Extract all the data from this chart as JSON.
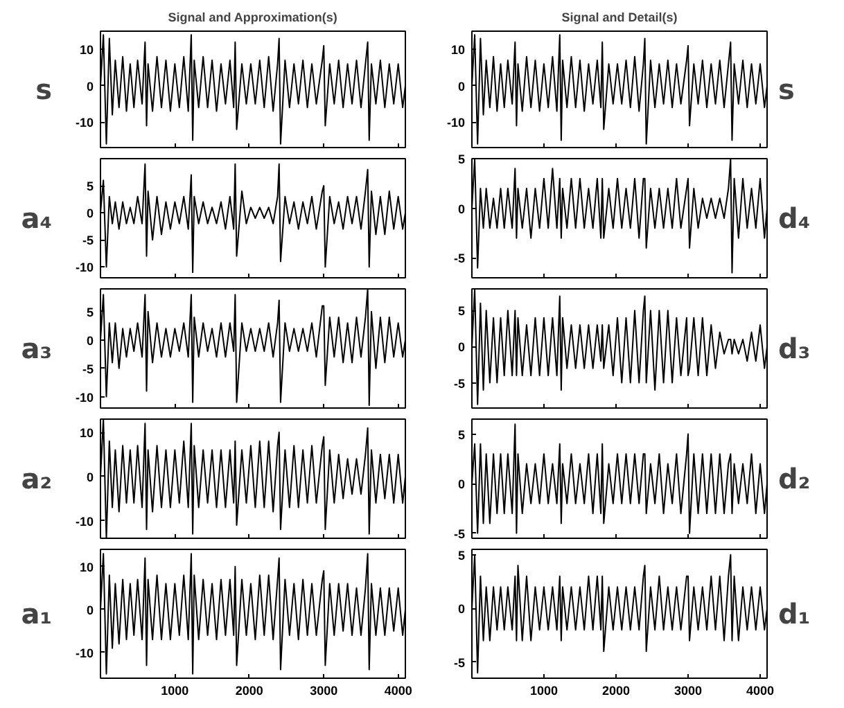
{
  "chart_data": [
    {
      "type": "line",
      "title": "Signal and Approximation(s)",
      "ylabel": "s",
      "xlim": [
        1,
        4096
      ],
      "ylim": [
        -17,
        15
      ],
      "xticks": [
        1000,
        2000,
        3000,
        4000
      ],
      "yticks": [
        -10,
        0,
        10
      ],
      "tick_labels": "y",
      "color": "#000000",
      "x": [
        1,
        40,
        80,
        120,
        160,
        200,
        250,
        300,
        350,
        400,
        450,
        500,
        560,
        600,
        620,
        640,
        700,
        760,
        820,
        880,
        940,
        1000,
        1060,
        1120,
        1180,
        1220,
        1240,
        1260,
        1320,
        1380,
        1440,
        1500,
        1560,
        1620,
        1680,
        1740,
        1790,
        1810,
        1830,
        1900,
        1960,
        2020,
        2080,
        2140,
        2200,
        2260,
        2320,
        2380,
        2400,
        2420,
        2480,
        2540,
        2600,
        2660,
        2720,
        2780,
        2840,
        2900,
        2980,
        3000,
        3020,
        3080,
        3140,
        3200,
        3260,
        3320,
        3380,
        3440,
        3500,
        3560,
        3590,
        3610,
        3640,
        3700,
        3760,
        3820,
        3880,
        3940,
        4000,
        4060,
        4096
      ],
      "values": [
        0,
        14,
        -16,
        13,
        -8,
        7,
        -6,
        8,
        -7,
        6,
        -6,
        7,
        -5,
        12,
        -11,
        6,
        -7,
        8,
        -6,
        7,
        -7,
        6,
        -6,
        8,
        -7,
        14,
        -15,
        7,
        -6,
        8,
        -6,
        7,
        -7,
        6,
        -5,
        7,
        -6,
        12,
        -12,
        6,
        -5,
        6,
        -5,
        7,
        -6,
        8,
        -7,
        6,
        13,
        -16,
        7,
        -6,
        6,
        -5,
        7,
        -6,
        6,
        -5,
        7,
        11,
        -11,
        6,
        -5,
        7,
        -6,
        6,
        -5,
        7,
        -6,
        6,
        12,
        -15,
        6,
        -5,
        7,
        -6,
        6,
        -5,
        6,
        -6,
        0
      ]
    },
    {
      "type": "line",
      "title": "Signal and Detail(s)",
      "ylabel": "s",
      "xlim": [
        1,
        4096
      ],
      "ylim": [
        -17,
        15
      ],
      "xticks": [
        1000,
        2000,
        3000,
        4000
      ],
      "yticks": [
        -10,
        0,
        10
      ],
      "tick_labels": "y",
      "color": "#000000",
      "x": [
        1,
        40,
        80,
        120,
        160,
        200,
        250,
        300,
        350,
        400,
        450,
        500,
        560,
        600,
        620,
        640,
        700,
        760,
        820,
        880,
        940,
        1000,
        1060,
        1120,
        1180,
        1220,
        1240,
        1260,
        1320,
        1380,
        1440,
        1500,
        1560,
        1620,
        1680,
        1740,
        1790,
        1810,
        1830,
        1900,
        1960,
        2020,
        2080,
        2140,
        2200,
        2260,
        2320,
        2380,
        2400,
        2420,
        2480,
        2540,
        2600,
        2660,
        2720,
        2780,
        2840,
        2900,
        2980,
        3000,
        3020,
        3080,
        3140,
        3200,
        3260,
        3320,
        3380,
        3440,
        3500,
        3560,
        3590,
        3610,
        3640,
        3700,
        3760,
        3820,
        3880,
        3940,
        4000,
        4060,
        4096
      ],
      "values": [
        0,
        14,
        -16,
        13,
        -8,
        7,
        -6,
        8,
        -7,
        6,
        -6,
        7,
        -5,
        12,
        -11,
        6,
        -7,
        8,
        -6,
        7,
        -7,
        6,
        -6,
        8,
        -7,
        14,
        -15,
        7,
        -6,
        8,
        -6,
        7,
        -7,
        6,
        -5,
        7,
        -6,
        12,
        -12,
        6,
        -5,
        6,
        -5,
        7,
        -6,
        8,
        -7,
        6,
        13,
        -16,
        7,
        -6,
        6,
        -5,
        7,
        -6,
        6,
        -5,
        7,
        11,
        -11,
        6,
        -5,
        7,
        -6,
        6,
        -5,
        7,
        -6,
        6,
        12,
        -15,
        6,
        -5,
        7,
        -6,
        6,
        -5,
        6,
        -6,
        0
      ]
    },
    {
      "type": "line",
      "ylabel": "a₄",
      "xlim": [
        1,
        4096
      ],
      "ylim": [
        -12,
        10
      ],
      "xticks": [
        1000,
        2000,
        3000,
        4000
      ],
      "yticks": [
        -10,
        -5,
        0,
        5
      ],
      "tick_labels": "y",
      "color": "#000000",
      "x": [
        1,
        40,
        80,
        120,
        160,
        200,
        250,
        300,
        350,
        400,
        450,
        500,
        560,
        600,
        620,
        640,
        700,
        760,
        820,
        880,
        940,
        1000,
        1060,
        1120,
        1180,
        1220,
        1240,
        1260,
        1320,
        1380,
        1440,
        1500,
        1560,
        1620,
        1680,
        1740,
        1790,
        1810,
        1830,
        1900,
        1960,
        2020,
        2080,
        2140,
        2200,
        2260,
        2320,
        2380,
        2400,
        2420,
        2480,
        2540,
        2600,
        2660,
        2720,
        2780,
        2840,
        2900,
        2980,
        3000,
        3020,
        3080,
        3140,
        3200,
        3260,
        3320,
        3380,
        3440,
        3500,
        3560,
        3590,
        3610,
        3640,
        3700,
        3760,
        3820,
        3880,
        3940,
        4000,
        4060,
        4096
      ],
      "values": [
        0,
        6,
        -10,
        3,
        -2,
        2,
        -3,
        2,
        -2,
        1,
        -2,
        3,
        -2,
        9,
        -8,
        4,
        -5,
        3,
        -4,
        2,
        -3,
        2,
        -2,
        3,
        -3,
        7,
        -11,
        3,
        -2,
        2,
        -2,
        1,
        -2,
        2,
        -3,
        3,
        -3,
        9,
        -8,
        4,
        -2,
        1,
        -1,
        1,
        -1,
        1,
        -2,
        3,
        9,
        -9,
        3,
        -2,
        2,
        -3,
        2,
        -2,
        3,
        -3,
        4,
        5,
        -10,
        3,
        -2,
        2,
        -3,
        3,
        -2,
        3,
        -3,
        4,
        8,
        -10,
        4,
        -4,
        3,
        -4,
        4,
        -3,
        3,
        -3,
        0
      ]
    },
    {
      "type": "line",
      "ylabel": "d₄",
      "xlim": [
        1,
        4096
      ],
      "ylim": [
        -7,
        5
      ],
      "xticks": [
        1000,
        2000,
        3000,
        4000
      ],
      "yticks": [
        -5,
        0,
        5
      ],
      "tick_labels": "y",
      "color": "#000000",
      "x": [
        1,
        40,
        80,
        120,
        160,
        200,
        250,
        300,
        350,
        400,
        450,
        500,
        560,
        600,
        620,
        640,
        700,
        760,
        820,
        880,
        940,
        1000,
        1060,
        1120,
        1180,
        1220,
        1240,
        1260,
        1320,
        1380,
        1440,
        1500,
        1560,
        1620,
        1680,
        1740,
        1790,
        1810,
        1830,
        1900,
        1960,
        2020,
        2080,
        2140,
        2200,
        2260,
        2320,
        2380,
        2400,
        2420,
        2480,
        2540,
        2600,
        2660,
        2720,
        2780,
        2840,
        2900,
        2980,
        3000,
        3020,
        3080,
        3140,
        3200,
        3260,
        3320,
        3380,
        3440,
        3500,
        3560,
        3590,
        3610,
        3640,
        3700,
        3760,
        3820,
        3880,
        3940,
        4000,
        4060,
        4096
      ],
      "values": [
        0,
        5,
        -6,
        2,
        -2,
        2,
        -2,
        1,
        -2,
        2,
        -2,
        2,
        -2,
        4,
        -3,
        2,
        -2,
        2,
        -3,
        2,
        -2,
        3,
        -2,
        4,
        -2,
        3,
        -3,
        2,
        -2,
        3,
        -2,
        3,
        -2,
        2,
        -2,
        3,
        -3,
        3,
        -3,
        2,
        -2,
        3,
        -2,
        2,
        -2,
        3,
        -3,
        3,
        3,
        -4,
        2,
        -2,
        2,
        -2,
        2,
        -2,
        3,
        -2,
        2,
        3,
        -4,
        2,
        -2,
        1,
        -1,
        1,
        -1,
        1,
        -1,
        2,
        5,
        -6.5,
        3,
        -3,
        3,
        -2,
        2,
        -2,
        3,
        -3,
        0
      ]
    },
    {
      "type": "line",
      "ylabel": "a₃",
      "xlim": [
        1,
        4096
      ],
      "ylim": [
        -12,
        9
      ],
      "xticks": [
        1000,
        2000,
        3000,
        4000
      ],
      "yticks": [
        -10,
        -5,
        0,
        5
      ],
      "tick_labels": "y",
      "color": "#000000",
      "x": [
        1,
        40,
        80,
        120,
        160,
        200,
        250,
        300,
        350,
        400,
        450,
        500,
        560,
        600,
        620,
        640,
        700,
        760,
        820,
        880,
        940,
        1000,
        1060,
        1120,
        1180,
        1220,
        1240,
        1260,
        1320,
        1380,
        1440,
        1500,
        1560,
        1620,
        1680,
        1740,
        1790,
        1810,
        1830,
        1900,
        1960,
        2020,
        2080,
        2140,
        2200,
        2260,
        2320,
        2380,
        2400,
        2420,
        2480,
        2540,
        2600,
        2660,
        2720,
        2780,
        2840,
        2900,
        2980,
        3000,
        3020,
        3080,
        3140,
        3200,
        3260,
        3320,
        3380,
        3440,
        3500,
        3560,
        3590,
        3610,
        3640,
        3700,
        3760,
        3820,
        3880,
        3940,
        4000,
        4060,
        4096
      ],
      "values": [
        0,
        8,
        -10,
        3,
        -4,
        3,
        -5,
        2,
        -3,
        2,
        -2,
        3,
        -3,
        8,
        -9,
        5,
        -4,
        3,
        -3,
        2,
        -3,
        2,
        -2,
        3,
        -3,
        8,
        -11,
        4,
        -3,
        3,
        -2,
        2,
        -3,
        3,
        -3,
        3,
        -2,
        8,
        -11,
        3,
        -2,
        2,
        -2,
        2,
        -2,
        3,
        -3,
        3,
        7,
        -11,
        3,
        -2,
        2,
        -2,
        2,
        -2,
        3,
        -3,
        6,
        6,
        -8,
        4,
        -3,
        4,
        -4,
        3,
        -4,
        4,
        -3,
        4,
        9,
        -11.5,
        5,
        -5,
        4,
        -4,
        4,
        -3,
        3,
        -3,
        0
      ]
    },
    {
      "type": "line",
      "ylabel": "d₃",
      "xlim": [
        1,
        4096
      ],
      "ylim": [
        -8.5,
        8
      ],
      "xticks": [
        1000,
        2000,
        3000,
        4000
      ],
      "yticks": [
        -5,
        0,
        5
      ],
      "tick_labels": "y",
      "color": "#000000",
      "x": [
        1,
        40,
        80,
        120,
        160,
        200,
        250,
        300,
        350,
        400,
        450,
        500,
        560,
        600,
        620,
        640,
        700,
        760,
        820,
        880,
        940,
        1000,
        1060,
        1120,
        1180,
        1220,
        1240,
        1260,
        1320,
        1380,
        1440,
        1500,
        1560,
        1620,
        1680,
        1740,
        1790,
        1810,
        1830,
        1900,
        1960,
        2020,
        2080,
        2140,
        2200,
        2260,
        2320,
        2380,
        2400,
        2420,
        2480,
        2540,
        2600,
        2660,
        2720,
        2780,
        2840,
        2900,
        2980,
        3000,
        3020,
        3080,
        3140,
        3200,
        3260,
        3320,
        3380,
        3440,
        3500,
        3560,
        3590,
        3610,
        3640,
        3700,
        3760,
        3820,
        3880,
        3940,
        4000,
        4060,
        4096
      ],
      "values": [
        0,
        8,
        -8,
        6,
        -6,
        5,
        -5,
        4,
        -5,
        4,
        -4,
        5,
        -4,
        5,
        -4,
        4,
        -4,
        3,
        -4,
        4,
        -4,
        4,
        -4,
        4,
        -4,
        7,
        -6,
        4,
        -3,
        3,
        -3,
        3,
        -3,
        3,
        -3,
        3,
        -2,
        3,
        -3,
        3,
        -4,
        4,
        -5,
        4,
        -5,
        5,
        -5,
        5,
        7,
        -5,
        5,
        -6,
        5,
        -5,
        5,
        -5,
        4,
        -4,
        4,
        -4,
        -3,
        4,
        -4,
        4,
        -4,
        3,
        -3,
        2,
        -1,
        1,
        1,
        -1,
        1,
        -1,
        1,
        -2,
        2,
        -2,
        3,
        -3,
        0
      ]
    },
    {
      "type": "line",
      "ylabel": "a₂",
      "xlim": [
        1,
        4096
      ],
      "ylim": [
        -14,
        13
      ],
      "xticks": [
        1000,
        2000,
        3000,
        4000
      ],
      "yticks": [
        -10,
        0,
        10
      ],
      "tick_labels": "y",
      "color": "#000000",
      "x": [
        1,
        40,
        80,
        120,
        160,
        200,
        250,
        300,
        350,
        400,
        450,
        500,
        560,
        600,
        620,
        640,
        700,
        760,
        820,
        880,
        940,
        1000,
        1060,
        1120,
        1180,
        1220,
        1240,
        1260,
        1320,
        1380,
        1440,
        1500,
        1560,
        1620,
        1680,
        1740,
        1790,
        1810,
        1830,
        1900,
        1960,
        2020,
        2080,
        2140,
        2200,
        2260,
        2320,
        2380,
        2400,
        2420,
        2480,
        2540,
        2600,
        2660,
        2720,
        2780,
        2840,
        2900,
        2980,
        3000,
        3020,
        3080,
        3140,
        3200,
        3260,
        3320,
        3380,
        3440,
        3500,
        3560,
        3590,
        3610,
        3640,
        3700,
        3760,
        3820,
        3880,
        3940,
        4000,
        4060,
        4096
      ],
      "values": [
        0,
        13,
        -14,
        8,
        -7,
        6,
        -8,
        7,
        -6,
        6,
        -6,
        7,
        -7,
        12,
        -12,
        6,
        -8,
        7,
        -7,
        6,
        -7,
        6,
        -6,
        8,
        -7,
        12,
        -13,
        7,
        -7,
        6,
        -6,
        6,
        -7,
        6,
        -7,
        6,
        -6,
        8,
        -11,
        6,
        -6,
        7,
        -7,
        8,
        -7,
        8,
        -8,
        7,
        10,
        -12,
        6,
        -7,
        7,
        -7,
        6,
        -6,
        7,
        -6,
        7,
        9,
        -12,
        6,
        -6,
        5,
        -5,
        4,
        -4,
        4,
        -4,
        5,
        11,
        -13,
        6,
        -6,
        5,
        -5,
        5,
        -6,
        5,
        -6,
        0
      ]
    },
    {
      "type": "line",
      "ylabel": "d₂",
      "xlim": [
        1,
        4096
      ],
      "ylim": [
        -5.5,
        6.5
      ],
      "xticks": [
        1000,
        2000,
        3000,
        4000
      ],
      "yticks": [
        -5,
        0,
        5
      ],
      "tick_labels": "y",
      "color": "#000000",
      "x": [
        1,
        40,
        80,
        120,
        160,
        200,
        250,
        300,
        350,
        400,
        450,
        500,
        560,
        600,
        620,
        640,
        700,
        760,
        820,
        880,
        940,
        1000,
        1060,
        1120,
        1180,
        1220,
        1240,
        1260,
        1320,
        1380,
        1440,
        1500,
        1560,
        1620,
        1680,
        1740,
        1790,
        1810,
        1830,
        1900,
        1960,
        2020,
        2080,
        2140,
        2200,
        2260,
        2320,
        2380,
        2400,
        2420,
        2480,
        2540,
        2600,
        2660,
        2720,
        2780,
        2840,
        2900,
        2980,
        3000,
        3020,
        3080,
        3140,
        3200,
        3260,
        3320,
        3380,
        3440,
        3500,
        3560,
        3590,
        3610,
        3640,
        3700,
        3760,
        3820,
        3880,
        3940,
        4000,
        4060,
        4096
      ],
      "values": [
        0,
        4,
        -5,
        4,
        -4,
        3,
        -4,
        3,
        -3,
        3,
        -3,
        3,
        -3,
        6,
        -5,
        3,
        -3,
        2,
        -2,
        2,
        -2,
        3,
        -2,
        2,
        -2,
        4,
        -4,
        2,
        -2,
        3,
        -2,
        2,
        -2,
        3,
        -3,
        3,
        -3,
        4,
        -4,
        2,
        -2,
        3,
        -2,
        3,
        -2,
        3,
        -2,
        3,
        3,
        -3,
        2,
        -2,
        3,
        -3,
        2,
        -2,
        3,
        -3,
        3,
        5,
        -5,
        3,
        -3,
        3,
        -3,
        3,
        -3,
        3,
        -3,
        2,
        3,
        -3,
        2,
        -2,
        2,
        -2,
        3,
        -3,
        2,
        -3,
        0
      ]
    },
    {
      "type": "line",
      "ylabel": "a₁",
      "xlim": [
        1,
        4096
      ],
      "ylim": [
        -16,
        14
      ],
      "xticks": [
        1000,
        2000,
        3000,
        4000
      ],
      "yticks": [
        -10,
        0,
        10
      ],
      "color": "#000000",
      "x": [
        1,
        40,
        80,
        120,
        160,
        200,
        250,
        300,
        350,
        400,
        450,
        500,
        560,
        600,
        620,
        640,
        700,
        760,
        820,
        880,
        940,
        1000,
        1060,
        1120,
        1180,
        1220,
        1240,
        1260,
        1320,
        1380,
        1440,
        1500,
        1560,
        1620,
        1680,
        1740,
        1790,
        1810,
        1830,
        1900,
        1960,
        2020,
        2080,
        2140,
        2200,
        2260,
        2320,
        2380,
        2400,
        2420,
        2480,
        2540,
        2600,
        2660,
        2720,
        2780,
        2840,
        2900,
        2980,
        3000,
        3020,
        3080,
        3140,
        3200,
        3260,
        3320,
        3380,
        3440,
        3500,
        3560,
        3590,
        3610,
        3640,
        3700,
        3760,
        3820,
        3880,
        3940,
        4000,
        4060,
        4096
      ],
      "values": [
        0,
        13,
        -15,
        8,
        -9,
        6,
        -8,
        7,
        -7,
        6,
        -6,
        7,
        -7,
        12,
        -13,
        7,
        -7,
        8,
        -7,
        6,
        -7,
        6,
        -6,
        8,
        -7,
        13,
        -15,
        8,
        -7,
        7,
        -6,
        6,
        -7,
        7,
        -6,
        7,
        -6,
        10,
        -13,
        7,
        -6,
        6,
        -7,
        8,
        -6,
        8,
        -7,
        7,
        12,
        -14,
        7,
        -6,
        6,
        -7,
        7,
        -6,
        6,
        -6,
        7,
        9,
        -13,
        6,
        -6,
        6,
        -5,
        6,
        -6,
        5,
        -6,
        5,
        13,
        -14,
        6,
        -6,
        5,
        -6,
        5,
        -5,
        5,
        -6,
        0
      ]
    },
    {
      "type": "line",
      "ylabel": "d₁",
      "xlim": [
        1,
        4096
      ],
      "ylim": [
        -6.5,
        5.5
      ],
      "xticks": [
        1000,
        2000,
        3000,
        4000
      ],
      "yticks": [
        -5,
        0,
        5
      ],
      "color": "#000000",
      "x": [
        1,
        40,
        80,
        120,
        160,
        200,
        250,
        300,
        350,
        400,
        450,
        500,
        560,
        600,
        620,
        640,
        700,
        760,
        820,
        880,
        940,
        1000,
        1060,
        1120,
        1180,
        1220,
        1240,
        1260,
        1320,
        1380,
        1440,
        1500,
        1560,
        1620,
        1680,
        1740,
        1790,
        1810,
        1830,
        1900,
        1960,
        2020,
        2080,
        2140,
        2200,
        2260,
        2320,
        2380,
        2400,
        2420,
        2480,
        2540,
        2600,
        2660,
        2720,
        2780,
        2840,
        2900,
        2980,
        3000,
        3020,
        3080,
        3140,
        3200,
        3260,
        3320,
        3380,
        3440,
        3500,
        3560,
        3590,
        3610,
        3640,
        3700,
        3760,
        3820,
        3880,
        3940,
        4000,
        4060,
        4096
      ],
      "values": [
        0,
        5,
        -6,
        3,
        -3,
        2,
        -3,
        2,
        -2,
        2,
        -2,
        2,
        -2,
        3,
        -3,
        4,
        -3,
        3,
        -3,
        2,
        -2,
        2,
        -2,
        2,
        -2,
        3,
        -3,
        2,
        -2,
        2,
        -2,
        2,
        -2,
        3,
        -2,
        3,
        -2,
        3,
        -4,
        2,
        -2,
        2,
        -2,
        2,
        -2,
        2,
        -2,
        3,
        4,
        -4,
        2,
        -2,
        3,
        -2,
        2,
        -2,
        2,
        -2,
        3,
        3,
        -3,
        2,
        -2,
        2,
        -2,
        3,
        -2,
        3,
        -3,
        3,
        5,
        -3,
        3,
        -3,
        2,
        -2,
        2,
        -2,
        2,
        -2,
        0
      ]
    }
  ]
}
